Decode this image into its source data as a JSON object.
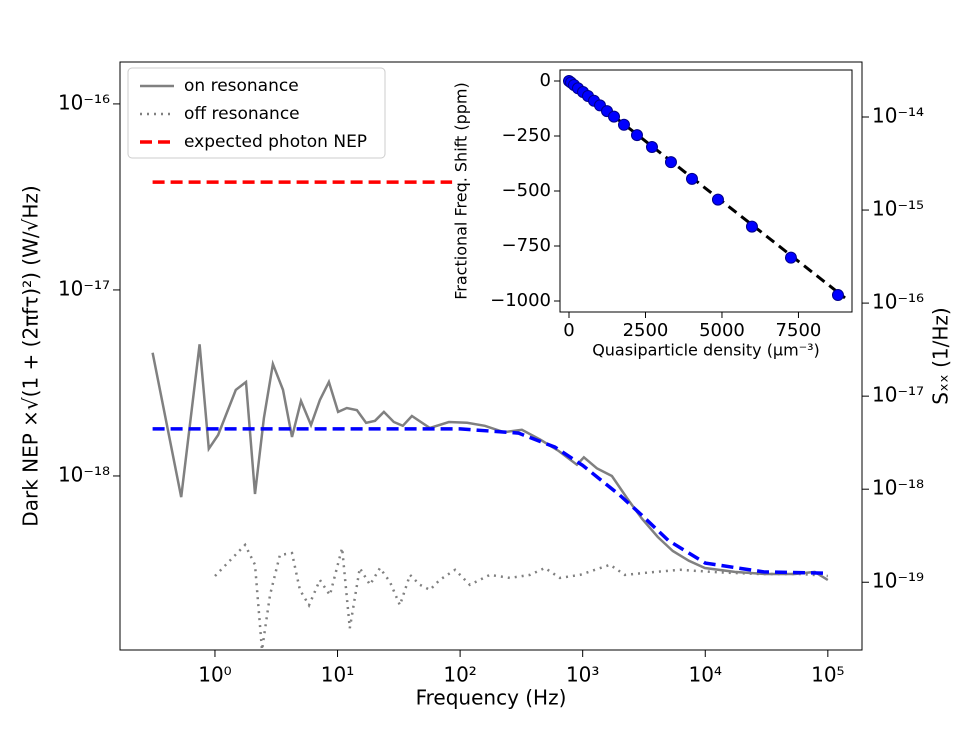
{
  "chart_data": [
    {
      "type": "line",
      "xlabel": "Frequency (Hz)",
      "ylabel": "Dark NEP ×√(1 + (2πfτ)²)   (W/√Hz)",
      "y2label": "Sₓₓ (1/Hz)",
      "xscale": "log",
      "yscale": "log",
      "y2scale": "log",
      "xlim": [
        0.168,
        190000
      ],
      "ylim": [
        1.16e-19,
        1.68e-16
      ],
      "y2lim": [
        1.87e-20,
        3.9e-14
      ],
      "xticks": [
        {
          "value": 1,
          "label": "10⁰"
        },
        {
          "value": 10,
          "label": "10¹"
        },
        {
          "value": 100,
          "label": "10²"
        },
        {
          "value": 1000,
          "label": "10³"
        },
        {
          "value": 10000,
          "label": "10⁴"
        },
        {
          "value": 100000,
          "label": "10⁵"
        }
      ],
      "yticks": [
        {
          "value": 1e-18,
          "label": "10⁻¹⁸"
        },
        {
          "value": 1e-17,
          "label": "10⁻¹⁷"
        },
        {
          "value": 1e-16,
          "label": "10⁻¹⁶"
        }
      ],
      "y2ticks": [
        {
          "value": 1e-19,
          "label": "10⁻¹⁹"
        },
        {
          "value": 1e-18,
          "label": "10⁻¹⁸"
        },
        {
          "value": 1e-17,
          "label": "10⁻¹⁷"
        },
        {
          "value": 1e-16,
          "label": "10⁻¹⁶"
        },
        {
          "value": 1e-15,
          "label": "10⁻¹⁵"
        },
        {
          "value": 1e-14,
          "label": "10⁻¹⁴"
        }
      ],
      "legend": "upper left",
      "series": [
        {
          "name": "on resonance",
          "color": "#808080",
          "style": "solid",
          "x": [
            0.31,
            0.53,
            0.75,
            0.89,
            1.06,
            1.48,
            1.79,
            2.12,
            2.51,
            2.97,
            3.59,
            4.25,
            5.03,
            6.07,
            7.18,
            8.51,
            10.1,
            11.9,
            14.4,
            17.1,
            20.2,
            23.9,
            28.8,
            34.1,
            40.4,
            56.7,
            81,
            114,
            159,
            228,
            319,
            456,
            640,
            897,
            1023,
            1306,
            1730,
            2300,
            3040,
            4100,
            5440,
            7350,
            9930,
            17400,
            30600,
            53800,
            78300,
            100000
          ],
          "values": [
            4.6e-18,
            7.7e-19,
            5.1e-18,
            1.4e-18,
            1.66e-18,
            2.9e-18,
            3.2e-18,
            8e-19,
            2.05e-18,
            4e-18,
            2.9e-18,
            1.62e-18,
            2.53e-18,
            1.88e-18,
            2.56e-18,
            3.2e-18,
            2.21e-18,
            2.32e-18,
            2.26e-18,
            1.93e-18,
            1.98e-18,
            2.21e-18,
            1.95e-18,
            1.86e-18,
            2.1e-18,
            1.81e-18,
            1.95e-18,
            1.93e-18,
            1.86e-18,
            1.72e-18,
            1.77e-18,
            1.56e-18,
            1.36e-18,
            1.15e-18,
            1.26e-18,
            1.1e-18,
            1e-18,
            7.6e-19,
            5.9e-19,
            4.7e-19,
            3.95e-19,
            3.5e-19,
            3.2e-19,
            3.05e-19,
            2.97e-19,
            2.97e-19,
            3.05e-19,
            2.76e-19
          ]
        },
        {
          "name": "off resonance",
          "color": "#808080",
          "style": "dotted",
          "x": [
            1.0,
            1.76,
            2.12,
            2.42,
            2.81,
            3.39,
            4.25,
            4.93,
            5.85,
            7.18,
            8.67,
            10.9,
            12.6,
            15.2,
            18.4,
            22.2,
            26.8,
            32.3,
            39,
            47,
            56.7,
            68,
            91,
            120,
            175,
            255,
            371,
            492,
            652,
            949,
            1260,
            1670,
            2210,
            3530,
            6210,
            13200,
            27900,
            59100,
            100000
          ],
          "values": [
            2.9e-19,
            4.26e-19,
            3.33e-19,
            1.16e-19,
            2.29e-19,
            3.76e-19,
            3.85e-19,
            2.44e-19,
            2.02e-19,
            2.76e-19,
            2.29e-19,
            4.1e-19,
            1.52e-19,
            3.2e-19,
            2.6e-19,
            3.2e-19,
            2.69e-19,
            2.02e-19,
            2.94e-19,
            2.6e-19,
            2.44e-19,
            2.76e-19,
            3.13e-19,
            2.6e-19,
            2.94e-19,
            2.83e-19,
            2.94e-19,
            3.2e-19,
            2.83e-19,
            2.94e-19,
            3.13e-19,
            3.33e-19,
            2.94e-19,
            3.03e-19,
            3.13e-19,
            3.03e-19,
            2.97e-19,
            2.97e-19,
            2.9e-19
          ]
        },
        {
          "name": "expected photon NEP",
          "color": "#ff0000",
          "style": "dashed",
          "x": [
            0.31,
            86
          ],
          "values": [
            3.8e-17,
            3.8e-17
          ]
        },
        {
          "color": "#0000ff",
          "style": "dashed",
          "x": [
            0.31,
            100,
            300,
            593,
            1000,
            2000,
            3000,
            5000,
            10000,
            30000,
            100000
          ],
          "values": [
            1.79e-18,
            1.79e-18,
            1.7e-18,
            1.43e-18,
            1.14e-18,
            7.9e-19,
            6.2e-19,
            4.5e-19,
            3.4e-19,
            3.05e-19,
            3e-19
          ]
        }
      ]
    },
    {
      "type": "scatter",
      "xlabel": "Quasiparticle density (μm⁻³)",
      "ylabel": "Fractional Freq. Shift (ppm)",
      "xlim": [
        -294,
        9250
      ],
      "ylim": [
        -1050,
        50
      ],
      "xticks": [
        0,
        2500,
        5000,
        7500
      ],
      "yticks": [
        0,
        {
          "value": -250,
          "label": "−250"
        },
        {
          "value": -500,
          "label": "−500"
        },
        {
          "value": -750,
          "label": "−750"
        },
        {
          "value": -1000,
          "label": "−1000"
        }
      ],
      "color": "#0000ff",
      "x": [
        0,
        65,
        163,
        294,
        458,
        621,
        817,
        1013,
        1242,
        1471,
        1797,
        2222,
        2712,
        3333,
        4020,
        4869,
        5980,
        7255,
        8791
      ],
      "values": [
        0,
        -7,
        -18,
        -33,
        -50,
        -68,
        -90,
        -111,
        -137,
        -162,
        -199,
        -246,
        -300,
        -369,
        -445,
        -539,
        -662,
        -803,
        -973
      ],
      "fit": {
        "color": "#000000",
        "x": [
          -131,
          9020
        ],
        "values": [
          14,
          -986
        ]
      }
    }
  ]
}
